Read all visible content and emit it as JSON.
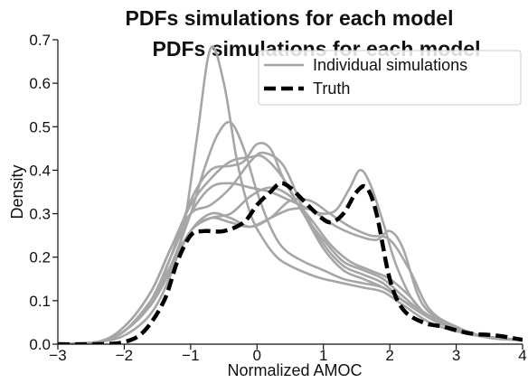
{
  "colors": {
    "simulation": "#a6a6a6",
    "truth": "#000000",
    "axis": "#111111",
    "legend_box": "#cccccc",
    "background": "#ffffff"
  },
  "chart_data": {
    "type": "line",
    "title": "PDFs simulations for each model",
    "title_repeat": "PDFs simulations for each model",
    "xlabel": "Normalized AMOC",
    "ylabel": "Density",
    "xlim": [
      -3,
      4
    ],
    "ylim": [
      0,
      0.7
    ],
    "xticks": [
      -3,
      -2,
      -1,
      0,
      1,
      2,
      3,
      4
    ],
    "yticks": [
      0.0,
      0.1,
      0.2,
      0.3,
      0.4,
      0.5,
      0.6,
      0.7
    ],
    "xtick_labels": [
      "−3",
      "−2",
      "−1",
      "0",
      "1",
      "2",
      "3",
      "4"
    ],
    "ytick_labels": [
      "0.0",
      "0.1",
      "0.2",
      "0.3",
      "0.4",
      "0.5",
      "0.6",
      "0.7"
    ],
    "grid": false,
    "legend": {
      "placement": "top-right",
      "entries": [
        {
          "label": "Individual simulations",
          "style": "solid-gray"
        },
        {
          "label": "Truth",
          "style": "dashed-black"
        }
      ]
    },
    "series": [
      {
        "kind": "simulation",
        "x": [
          -3.0,
          -2.4,
          -2.0,
          -1.6,
          -1.3,
          -1.1,
          -0.9,
          -0.7,
          -0.5,
          -0.3,
          -0.1,
          0.1,
          0.3,
          0.5,
          0.8,
          1.0,
          1.3,
          1.6,
          1.9,
          2.2,
          2.6,
          3.0,
          3.5,
          4.0
        ],
        "y": [
          0.0,
          0.005,
          0.02,
          0.07,
          0.16,
          0.27,
          0.48,
          0.68,
          0.6,
          0.42,
          0.3,
          0.24,
          0.2,
          0.18,
          0.16,
          0.15,
          0.14,
          0.13,
          0.12,
          0.09,
          0.05,
          0.03,
          0.015,
          0.01
        ]
      },
      {
        "kind": "simulation",
        "x": [
          -3.0,
          -2.4,
          -2.0,
          -1.6,
          -1.3,
          -1.0,
          -0.8,
          -0.6,
          -0.4,
          -0.2,
          0.0,
          0.2,
          0.4,
          0.7,
          1.0,
          1.3,
          1.6,
          1.9,
          2.2,
          2.6,
          3.0,
          3.5,
          4.0
        ],
        "y": [
          0.0,
          0.005,
          0.03,
          0.1,
          0.18,
          0.3,
          0.4,
          0.48,
          0.51,
          0.45,
          0.35,
          0.27,
          0.22,
          0.19,
          0.17,
          0.15,
          0.14,
          0.13,
          0.1,
          0.06,
          0.035,
          0.015,
          0.01
        ]
      },
      {
        "kind": "simulation",
        "x": [
          -3.0,
          -2.4,
          -2.0,
          -1.6,
          -1.3,
          -1.0,
          -0.7,
          -0.4,
          -0.2,
          0.0,
          0.2,
          0.4,
          0.7,
          1.0,
          1.3,
          1.6,
          1.9,
          2.2,
          2.6,
          3.0,
          3.5,
          4.0
        ],
        "y": [
          0.0,
          0.005,
          0.03,
          0.1,
          0.2,
          0.33,
          0.4,
          0.41,
          0.42,
          0.46,
          0.45,
          0.38,
          0.3,
          0.22,
          0.17,
          0.15,
          0.13,
          0.1,
          0.06,
          0.035,
          0.015,
          0.01
        ]
      },
      {
        "kind": "simulation",
        "x": [
          -3.0,
          -2.4,
          -2.0,
          -1.6,
          -1.3,
          -1.0,
          -0.7,
          -0.4,
          -0.1,
          0.1,
          0.4,
          0.7,
          1.0,
          1.3,
          1.6,
          1.9,
          2.2,
          2.6,
          3.0,
          3.5,
          4.0
        ],
        "y": [
          0.0,
          0.005,
          0.04,
          0.12,
          0.22,
          0.32,
          0.38,
          0.42,
          0.43,
          0.43,
          0.38,
          0.3,
          0.24,
          0.19,
          0.17,
          0.15,
          0.11,
          0.06,
          0.035,
          0.015,
          0.01
        ]
      },
      {
        "kind": "simulation",
        "x": [
          -3.0,
          -2.4,
          -2.0,
          -1.6,
          -1.3,
          -1.0,
          -0.7,
          -0.4,
          -0.1,
          0.1,
          0.4,
          0.7,
          1.0,
          1.3,
          1.6,
          1.9,
          2.2,
          2.6,
          3.0,
          3.5,
          4.0
        ],
        "y": [
          0.0,
          0.005,
          0.04,
          0.12,
          0.22,
          0.3,
          0.32,
          0.36,
          0.42,
          0.44,
          0.41,
          0.31,
          0.23,
          0.18,
          0.16,
          0.14,
          0.1,
          0.06,
          0.035,
          0.015,
          0.01
        ]
      },
      {
        "kind": "simulation",
        "x": [
          -3.0,
          -2.4,
          -2.0,
          -1.6,
          -1.3,
          -1.0,
          -0.7,
          -0.4,
          -0.1,
          0.2,
          0.5,
          0.8,
          1.1,
          1.4,
          1.7,
          2.0,
          2.3,
          2.6,
          3.0,
          3.5,
          4.0
        ],
        "y": [
          0.0,
          0.005,
          0.03,
          0.1,
          0.18,
          0.26,
          0.29,
          0.3,
          0.34,
          0.36,
          0.34,
          0.29,
          0.23,
          0.19,
          0.17,
          0.15,
          0.11,
          0.06,
          0.035,
          0.015,
          0.01
        ]
      },
      {
        "kind": "simulation",
        "x": [
          -3.0,
          -2.4,
          -2.0,
          -1.6,
          -1.3,
          -1.0,
          -0.7,
          -0.4,
          -0.1,
          0.2,
          0.5,
          0.8,
          1.1,
          1.4,
          1.7,
          2.0,
          2.3,
          2.6,
          3.0,
          3.5,
          4.0
        ],
        "y": [
          0.0,
          0.005,
          0.03,
          0.09,
          0.17,
          0.26,
          0.3,
          0.29,
          0.27,
          0.29,
          0.33,
          0.33,
          0.3,
          0.27,
          0.25,
          0.24,
          0.17,
          0.08,
          0.04,
          0.015,
          0.01
        ]
      },
      {
        "kind": "simulation",
        "x": [
          -3.0,
          -2.4,
          -2.0,
          -1.6,
          -1.3,
          -1.0,
          -0.7,
          -0.4,
          -0.1,
          0.2,
          0.5,
          0.8,
          1.0,
          1.2,
          1.5,
          1.8,
          2.0,
          2.2,
          2.5,
          3.0,
          3.5,
          4.0
        ],
        "y": [
          0.0,
          0.005,
          0.03,
          0.09,
          0.17,
          0.26,
          0.29,
          0.28,
          0.27,
          0.29,
          0.31,
          0.31,
          0.29,
          0.27,
          0.25,
          0.24,
          0.26,
          0.22,
          0.09,
          0.04,
          0.015,
          0.01
        ]
      },
      {
        "kind": "simulation",
        "x": [
          -3.0,
          -2.4,
          -2.0,
          -1.6,
          -1.3,
          -1.0,
          -0.7,
          -0.4,
          -0.1,
          0.2,
          0.5,
          0.8,
          1.0,
          1.2,
          1.4,
          1.55,
          1.7,
          1.9,
          2.1,
          2.4,
          2.8,
          3.2,
          3.6,
          4.0
        ],
        "y": [
          0.0,
          0.005,
          0.03,
          0.1,
          0.2,
          0.3,
          0.36,
          0.37,
          0.36,
          0.35,
          0.33,
          0.31,
          0.3,
          0.31,
          0.36,
          0.4,
          0.37,
          0.28,
          0.18,
          0.09,
          0.05,
          0.025,
          0.015,
          0.01
        ]
      },
      {
        "kind": "truth",
        "x": [
          -3.0,
          -2.4,
          -2.0,
          -1.7,
          -1.4,
          -1.2,
          -1.0,
          -0.8,
          -0.5,
          -0.2,
          0.0,
          0.2,
          0.35,
          0.5,
          0.7,
          0.9,
          1.1,
          1.3,
          1.5,
          1.65,
          1.8,
          2.0,
          2.2,
          2.5,
          2.8,
          3.2,
          3.6,
          4.0
        ],
        "y": [
          0.0,
          0.0,
          0.005,
          0.03,
          0.1,
          0.19,
          0.25,
          0.26,
          0.26,
          0.28,
          0.32,
          0.35,
          0.37,
          0.36,
          0.33,
          0.3,
          0.28,
          0.3,
          0.35,
          0.36,
          0.3,
          0.15,
          0.08,
          0.05,
          0.04,
          0.025,
          0.02,
          0.01
        ]
      }
    ]
  }
}
